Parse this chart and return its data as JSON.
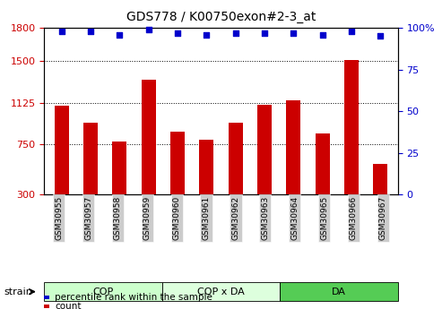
{
  "title": "GDS778 / K00750exon#2-3_at",
  "categories": [
    "GSM30955",
    "GSM30957",
    "GSM30958",
    "GSM30959",
    "GSM30960",
    "GSM30961",
    "GSM30962",
    "GSM30963",
    "GSM30964",
    "GSM30965",
    "GSM30966",
    "GSM30967"
  ],
  "bar_values": [
    1100,
    950,
    780,
    1330,
    870,
    790,
    950,
    1110,
    1145,
    850,
    1510,
    580
  ],
  "bar_color": "#cc0000",
  "dot_values": [
    98,
    98,
    96,
    99,
    97,
    96,
    97,
    97,
    97,
    96,
    98,
    95
  ],
  "dot_color": "#0000cc",
  "ylim_left": [
    300,
    1800
  ],
  "ylim_right": [
    0,
    100
  ],
  "yticks_left": [
    300,
    750,
    1125,
    1500,
    1800
  ],
  "yticks_right": [
    0,
    25,
    50,
    75,
    100
  ],
  "grid_lines": [
    750,
    1125,
    1500
  ],
  "groups": [
    {
      "label": "COP",
      "start": 0,
      "end": 3,
      "color": "#ccffcc"
    },
    {
      "label": "COP x DA",
      "start": 4,
      "end": 7,
      "color": "#ddffdd"
    },
    {
      "label": "DA",
      "start": 8,
      "end": 11,
      "color": "#55cc55"
    }
  ],
  "strain_label": "strain",
  "legend_count_label": "count",
  "legend_pct_label": "percentile rank within the sample",
  "bg_color": "#ffffff",
  "tick_bg_color": "#cccccc"
}
